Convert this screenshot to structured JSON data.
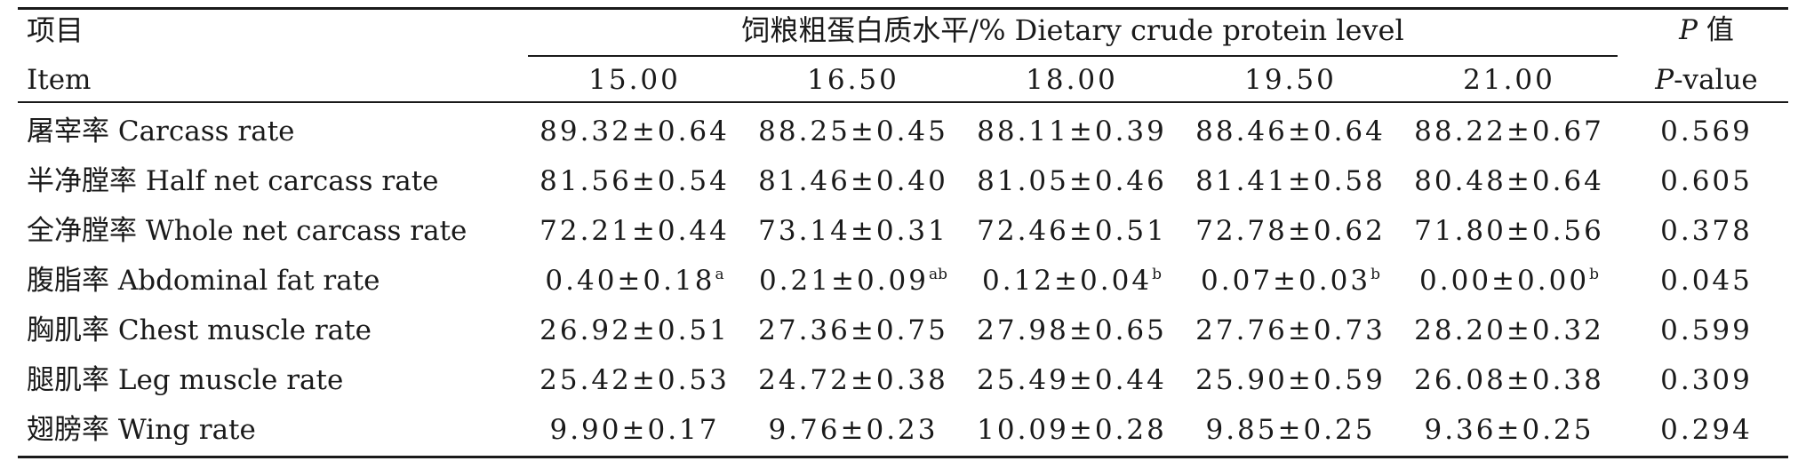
{
  "table": {
    "header": {
      "item_zh": "项目",
      "item_en": "Item",
      "group_title": "饲粮粗蛋白质水平/% Dietary crude protein level",
      "levels": [
        "15.00",
        "16.50",
        "18.00",
        "19.50",
        "21.00"
      ],
      "p_zh_prefix": "P",
      "p_zh_suffix": " 值",
      "p_en_prefix": "P",
      "p_en_suffix": "-value"
    },
    "rows": [
      {
        "label": "屠宰率 Carcass rate",
        "values": [
          "89.32±0.64",
          "88.25±0.45",
          "88.11±0.39",
          "88.46±0.64",
          "88.22±0.67"
        ],
        "sups": [
          "",
          "",
          "",
          "",
          ""
        ],
        "p": "0.569"
      },
      {
        "label": "半净膛率 Half net carcass rate",
        "values": [
          "81.56±0.54",
          "81.46±0.40",
          "81.05±0.46",
          "81.41±0.58",
          "80.48±0.64"
        ],
        "sups": [
          "",
          "",
          "",
          "",
          ""
        ],
        "p": "0.605"
      },
      {
        "label": "全净膛率 Whole net carcass rate",
        "values": [
          "72.21±0.44",
          "73.14±0.31",
          "72.46±0.51",
          "72.78±0.62",
          "71.80±0.56"
        ],
        "sups": [
          "",
          "",
          "",
          "",
          ""
        ],
        "p": "0.378"
      },
      {
        "label": "腹脂率 Abdominal fat rate",
        "values": [
          "0.40±0.18",
          "0.21±0.09",
          "0.12±0.04",
          "0.07±0.03",
          "0.00±0.00"
        ],
        "sups": [
          "a",
          "ab",
          "b",
          "b",
          "b"
        ],
        "p": "0.045"
      },
      {
        "label": "胸肌率 Chest muscle rate",
        "values": [
          "26.92±0.51",
          "27.36±0.75",
          "27.98±0.65",
          "27.76±0.73",
          "28.20±0.32"
        ],
        "sups": [
          "",
          "",
          "",
          "",
          ""
        ],
        "p": "0.599"
      },
      {
        "label": "腿肌率 Leg muscle rate",
        "values": [
          "25.42±0.53",
          "24.72±0.38",
          "25.49±0.44",
          "25.90±0.59",
          "26.08±0.38"
        ],
        "sups": [
          "",
          "",
          "",
          "",
          ""
        ],
        "p": "0.309"
      },
      {
        "label": "翅膀率 Wing rate",
        "values": [
          "9.90±0.17",
          "9.76±0.23",
          "10.09±0.28",
          "9.85±0.25",
          "9.36±0.25"
        ],
        "sups": [
          "",
          "",
          "",
          "",
          ""
        ],
        "p": "0.294"
      }
    ]
  }
}
